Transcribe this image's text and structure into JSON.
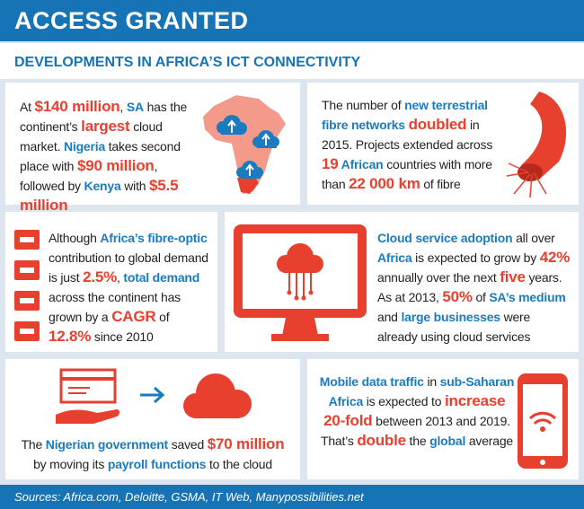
{
  "header": {
    "title": "ACCESS GRANTED",
    "subtitle": "DEVELOPMENTS IN AFRICA’S ICT CONNECTIVITY"
  },
  "panels": [
    {
      "align": "left",
      "segments": [
        {
          "text": "At ",
          "color": "#231f20"
        },
        {
          "text": "$140 million",
          "color": "#e8402f"
        },
        {
          "text": ", ",
          "color": "#231f20"
        },
        {
          "text": "SA",
          "color": "#1a7bbf"
        },
        {
          "text": " has the continent’s ",
          "color": "#231f20"
        },
        {
          "text": "largest",
          "color": "#e8402f"
        },
        {
          "text": " cloud market. ",
          "color": "#231f20"
        },
        {
          "text": "Nigeria",
          "color": "#1a7bbf"
        },
        {
          "text": " takes second place with ",
          "color": "#231f20"
        },
        {
          "text": "$90 million",
          "color": "#e8402f"
        },
        {
          "text": ", followed by ",
          "color": "#231f20"
        },
        {
          "text": "Kenya",
          "color": "#1a7bbf"
        },
        {
          "text": " with ",
          "color": "#231f20"
        },
        {
          "text": "$5.5 million",
          "color": "#e8402f"
        }
      ]
    },
    {
      "align": "left",
      "segments": [
        {
          "text": "The number of ",
          "color": "#231f20"
        },
        {
          "text": "new terrestrial fibre networks ",
          "color": "#1a7bbf"
        },
        {
          "text": "doubled",
          "color": "#e8402f"
        },
        {
          "text": " in 2015. Projects extended across ",
          "color": "#231f20"
        },
        {
          "text": "19",
          "color": "#e8402f"
        },
        {
          "text": " African",
          "color": "#1a7bbf"
        },
        {
          "text": " countries with more than ",
          "color": "#231f20"
        },
        {
          "text": "22 000 km",
          "color": "#e8402f"
        },
        {
          "text": " of fibre",
          "color": "#231f20"
        }
      ]
    },
    {
      "align": "left",
      "segments": [
        {
          "text": "Although ",
          "color": "#231f20"
        },
        {
          "text": "Africa’s fibre-optic",
          "color": "#1a7bbf"
        },
        {
          "text": " contribution to global demand is just ",
          "color": "#231f20"
        },
        {
          "text": "2.5%",
          "color": "#e8402f"
        },
        {
          "text": ", ",
          "color": "#231f20"
        },
        {
          "text": "total demand",
          "color": "#1a7bbf"
        },
        {
          "text": " across the continent has grown by a ",
          "color": "#231f20"
        },
        {
          "text": "CAGR",
          "color": "#e8402f"
        },
        {
          "text": " of ",
          "color": "#231f20"
        },
        {
          "text": "12.8%",
          "color": "#e8402f"
        },
        {
          "text": " since 2010",
          "color": "#231f20"
        }
      ]
    },
    {
      "align": "left",
      "segments": [
        {
          "text": "Cloud service adoption",
          "color": "#1a7bbf"
        },
        {
          "text": " all over ",
          "color": "#231f20"
        },
        {
          "text": "Africa",
          "color": "#1a7bbf"
        },
        {
          "text": " is expected to grow by ",
          "color": "#231f20"
        },
        {
          "text": "42%",
          "color": "#e8402f"
        },
        {
          "text": " annually over the next ",
          "color": "#231f20"
        },
        {
          "text": "five",
          "color": "#e8402f"
        },
        {
          "text": " years. As at 2013, ",
          "color": "#231f20"
        },
        {
          "text": "50%",
          "color": "#e8402f"
        },
        {
          "text": " of ",
          "color": "#231f20"
        },
        {
          "text": "SA’s medium",
          "color": "#1a7bbf"
        },
        {
          "text": " and ",
          "color": "#231f20"
        },
        {
          "text": "large businesses",
          "color": "#1a7bbf"
        },
        {
          "text": " were already using cloud services",
          "color": "#231f20"
        }
      ]
    },
    {
      "align": "center",
      "segments": [
        {
          "text": "The ",
          "color": "#231f20"
        },
        {
          "text": "Nigerian government",
          "color": "#1a7bbf"
        },
        {
          "text": " saved ",
          "color": "#231f20"
        },
        {
          "text": "$70 million",
          "color": "#e8402f"
        },
        {
          "text": " by moving its ",
          "color": "#231f20"
        },
        {
          "text": "payroll functions",
          "color": "#1a7bbf"
        },
        {
          "text": " to the cloud",
          "color": "#231f20"
        }
      ]
    },
    {
      "align": "center",
      "segments": [
        {
          "text": "Mobile data traffic",
          "color": "#1a7bbf"
        },
        {
          "text": " in ",
          "color": "#231f20"
        },
        {
          "text": "sub-Saharan Africa",
          "color": "#1a7bbf"
        },
        {
          "text": " is expected to ",
          "color": "#231f20"
        },
        {
          "text": "increase 20-fold",
          "color": "#e8402f"
        },
        {
          "text": " between 2013 and 2019. That’s ",
          "color": "#231f20"
        },
        {
          "text": "double",
          "color": "#e8402f"
        },
        {
          "text": " the ",
          "color": "#231f20"
        },
        {
          "text": "global",
          "color": "#1a7bbf"
        },
        {
          "text": " average",
          "color": "#231f20"
        }
      ]
    }
  ],
  "footer": {
    "sources": "Sources: Africa.com, Deloitte, GSMA, IT Web, Manypossibilities.net"
  }
}
